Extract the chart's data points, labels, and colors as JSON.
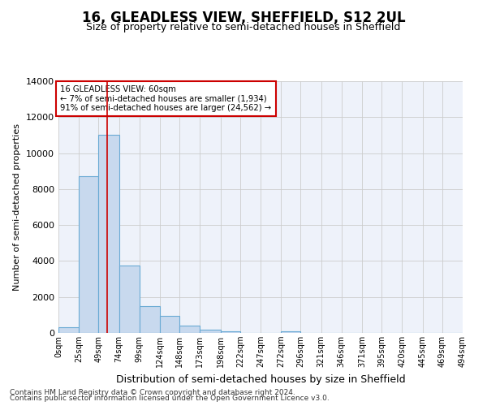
{
  "title": "16, GLEADLESS VIEW, SHEFFIELD, S12 2UL",
  "subtitle": "Size of property relative to semi-detached houses in Sheffield",
  "xlabel": "Distribution of semi-detached houses by size in Sheffield",
  "ylabel": "Number of semi-detached properties",
  "footer_line1": "Contains HM Land Registry data © Crown copyright and database right 2024.",
  "footer_line2": "Contains public sector information licensed under the Open Government Licence v3.0.",
  "annotation_line1": "16 GLEADLESS VIEW: 60sqm",
  "annotation_line2": "← 7% of semi-detached houses are smaller (1,934)",
  "annotation_line3": "91% of semi-detached houses are larger (24,562) →",
  "bar_edges": [
    0,
    25,
    49,
    74,
    99,
    124,
    148,
    173,
    198,
    222,
    247,
    272,
    296,
    321,
    346,
    371,
    395,
    420,
    445,
    469,
    494
  ],
  "bar_heights": [
    300,
    8700,
    11000,
    3750,
    1500,
    950,
    400,
    200,
    100,
    0,
    0,
    100,
    0,
    0,
    0,
    0,
    0,
    0,
    0,
    0
  ],
  "bar_color": "#c8d9ee",
  "bar_edge_color": "#6aaad4",
  "vline_color": "#cc0000",
  "vline_x": 60,
  "ylim": [
    0,
    14000
  ],
  "yticks": [
    0,
    2000,
    4000,
    6000,
    8000,
    10000,
    12000,
    14000
  ],
  "tick_labels": [
    "0sqm",
    "25sqm",
    "49sqm",
    "74sqm",
    "99sqm",
    "124sqm",
    "148sqm",
    "173sqm",
    "198sqm",
    "222sqm",
    "247sqm",
    "272sqm",
    "296sqm",
    "321sqm",
    "346sqm",
    "371sqm",
    "395sqm",
    "420sqm",
    "445sqm",
    "469sqm",
    "494sqm"
  ],
  "vline_box_edge": "#cc0000",
  "plot_bg_color": "#eef2fa"
}
